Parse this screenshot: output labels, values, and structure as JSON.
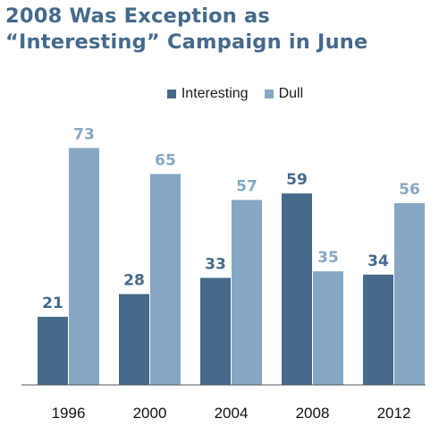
{
  "title_line1": "2008 Was Exception as",
  "title_line2": "“Interesting” Campaign in June",
  "colors": {
    "interesting": "#456a8a",
    "dull": "#85a7c4",
    "title": "#456a8a"
  },
  "chart_data": {
    "type": "bar",
    "categories": [
      "1996",
      "2000",
      "2004",
      "2008",
      "2012"
    ],
    "series": [
      {
        "name": "Interesting",
        "values": [
          21,
          28,
          33,
          59,
          34
        ]
      },
      {
        "name": "Dull",
        "values": [
          73,
          65,
          57,
          35,
          56
        ]
      }
    ],
    "ylim": [
      0,
      80
    ],
    "grid": false,
    "legend_position": "top"
  }
}
